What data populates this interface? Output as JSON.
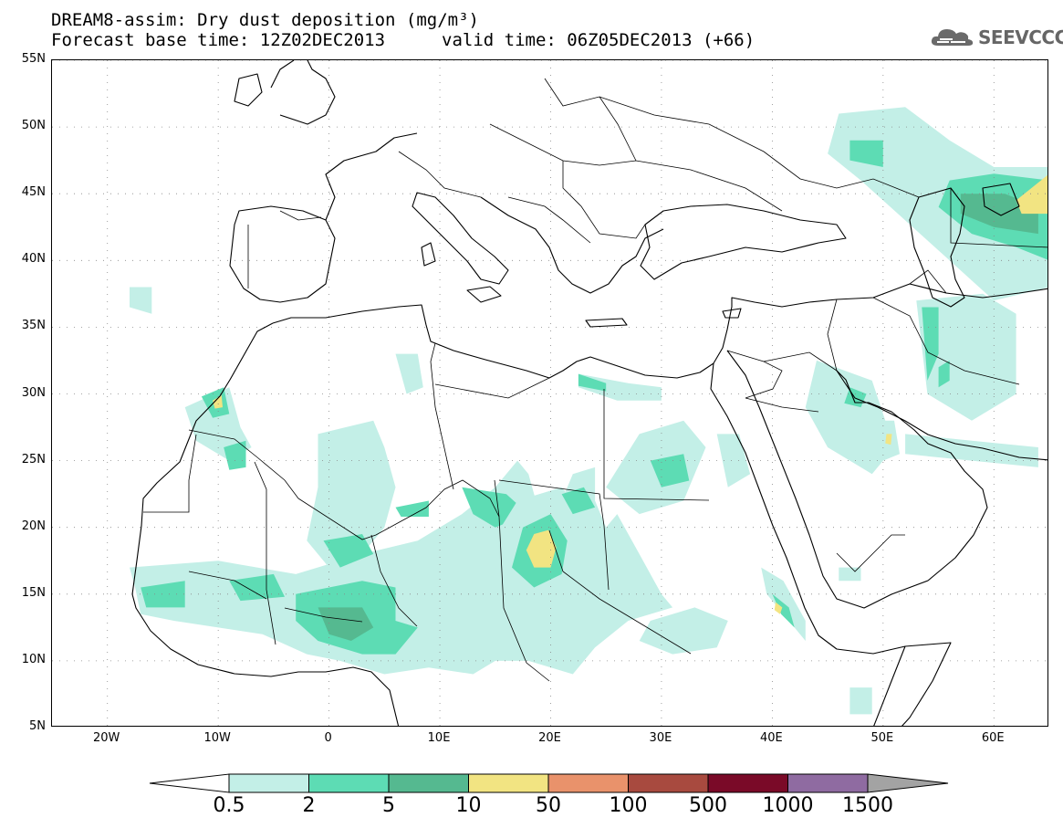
{
  "title": {
    "line1": "DREAM8-assim: Dry dust deposition (mg/m³)",
    "line2_base": "Forecast base time: 12Z02DEC2013",
    "line2_valid": "valid time: 06Z05DEC2013 (+66)"
  },
  "logo": {
    "text": "SEEVCCC",
    "icon": "cloud-logo-icon"
  },
  "map": {
    "lon_min": -25,
    "lon_max": 65,
    "lat_min": 5,
    "lat_max": 55,
    "lat_ticks": [
      {
        "value": 55,
        "label": "55N"
      },
      {
        "value": 50,
        "label": "50N"
      },
      {
        "value": 45,
        "label": "45N"
      },
      {
        "value": 40,
        "label": "40N"
      },
      {
        "value": 35,
        "label": "35N"
      },
      {
        "value": 30,
        "label": "30N"
      },
      {
        "value": 25,
        "label": "25N"
      },
      {
        "value": 20,
        "label": "20N"
      },
      {
        "value": 15,
        "label": "15N"
      },
      {
        "value": 10,
        "label": "10N"
      },
      {
        "value": 5,
        "label": "5N"
      }
    ],
    "lon_ticks": [
      {
        "value": -20,
        "label": "20W"
      },
      {
        "value": -10,
        "label": "10W"
      },
      {
        "value": 0,
        "label": "0"
      },
      {
        "value": 10,
        "label": "10E"
      },
      {
        "value": 20,
        "label": "20E"
      },
      {
        "value": 30,
        "label": "30E"
      },
      {
        "value": 40,
        "label": "40E"
      },
      {
        "value": 50,
        "label": "50E"
      },
      {
        "value": 60,
        "label": "60E"
      }
    ],
    "colors": {
      "c1": "#c3efe7",
      "c2": "#5ddcb4",
      "c3": "#55b990",
      "c4": "#f2e482",
      "ocean": "#ffffff",
      "coast": "#000000"
    },
    "deposition_regions": [
      {
        "level": 1,
        "pts": [
          [
            -13,
            29
          ],
          [
            -9,
            30.5
          ],
          [
            -8,
            27.5
          ],
          [
            -7,
            26
          ],
          [
            -9,
            25
          ],
          [
            -12,
            26.5
          ]
        ]
      },
      {
        "level": 2,
        "pts": [
          [
            -11.5,
            29.8
          ],
          [
            -9.5,
            30.5
          ],
          [
            -9,
            28.5
          ],
          [
            -10.5,
            28.2
          ]
        ]
      },
      {
        "level": 4,
        "pts": [
          [
            -10.5,
            29.5
          ],
          [
            -9.7,
            29.9
          ],
          [
            -9.6,
            29
          ],
          [
            -10.3,
            28.9
          ]
        ]
      },
      {
        "level": 2,
        "pts": [
          [
            -9.5,
            26
          ],
          [
            -7.5,
            26.5
          ],
          [
            -7.5,
            24.5
          ],
          [
            -9,
            24.3
          ]
        ]
      },
      {
        "level": 1,
        "pts": [
          [
            -1,
            27
          ],
          [
            4,
            28
          ],
          [
            5,
            26
          ],
          [
            6,
            23
          ],
          [
            5,
            20
          ],
          [
            3,
            18
          ],
          [
            0,
            17
          ],
          [
            -2,
            19
          ],
          [
            -1,
            23
          ]
        ]
      },
      {
        "level": 1,
        "pts": [
          [
            -18,
            17
          ],
          [
            -10,
            17.5
          ],
          [
            -3,
            16.5
          ],
          [
            3,
            18
          ],
          [
            8,
            19
          ],
          [
            12,
            21
          ],
          [
            15,
            23
          ],
          [
            17,
            25
          ],
          [
            18,
            24
          ],
          [
            19,
            21
          ],
          [
            21,
            22
          ],
          [
            22,
            24
          ],
          [
            24,
            24.5
          ],
          [
            24,
            22
          ],
          [
            25,
            20
          ],
          [
            26,
            21
          ],
          [
            28,
            18
          ],
          [
            30,
            15
          ],
          [
            31,
            14
          ],
          [
            27,
            13
          ],
          [
            24,
            11
          ],
          [
            22,
            9
          ],
          [
            18,
            10
          ],
          [
            15,
            10
          ],
          [
            13,
            9
          ],
          [
            9,
            9.5
          ],
          [
            5,
            9
          ],
          [
            1,
            10
          ],
          [
            -2,
            10.5
          ],
          [
            -6,
            12
          ],
          [
            -10,
            12.5
          ],
          [
            -14,
            13
          ],
          [
            -17,
            13.5
          ],
          [
            -17.5,
            15.5
          ]
        ]
      },
      {
        "level": 2,
        "pts": [
          [
            -17,
            15.5
          ],
          [
            -13,
            16
          ],
          [
            -13,
            14
          ],
          [
            -16.5,
            14
          ]
        ]
      },
      {
        "level": 2,
        "pts": [
          [
            -9,
            16
          ],
          [
            -5,
            16.5
          ],
          [
            -4,
            14.8
          ],
          [
            -8,
            14.5
          ]
        ]
      },
      {
        "level": 2,
        "pts": [
          [
            -3,
            15
          ],
          [
            3,
            16
          ],
          [
            6,
            15.5
          ],
          [
            6,
            13
          ],
          [
            8,
            12.5
          ],
          [
            6,
            10.5
          ],
          [
            3,
            10.5
          ],
          [
            -1,
            11.5
          ],
          [
            -3,
            13
          ]
        ]
      },
      {
        "level": 3,
        "pts": [
          [
            -1,
            14
          ],
          [
            3,
            14
          ],
          [
            4,
            12.5
          ],
          [
            2,
            11.5
          ],
          [
            0,
            12
          ]
        ]
      },
      {
        "level": 2,
        "pts": [
          [
            -0.5,
            19
          ],
          [
            3,
            19.5
          ],
          [
            4,
            18
          ],
          [
            1,
            17
          ]
        ]
      },
      {
        "level": 2,
        "pts": [
          [
            6,
            21.5
          ],
          [
            9,
            22
          ],
          [
            9,
            20.8
          ],
          [
            6.5,
            20.8
          ]
        ]
      },
      {
        "level": 2,
        "pts": [
          [
            12,
            23
          ],
          [
            16,
            22.5
          ],
          [
            18,
            21
          ],
          [
            15,
            20
          ],
          [
            13,
            21
          ]
        ]
      },
      {
        "level": 1,
        "pts": [
          [
            17,
            22
          ],
          [
            21,
            23
          ],
          [
            23,
            21
          ],
          [
            22,
            17
          ],
          [
            19,
            15
          ],
          [
            16,
            15
          ],
          [
            15,
            17
          ],
          [
            15.5,
            20
          ]
        ]
      },
      {
        "level": 2,
        "pts": [
          [
            17.5,
            20
          ],
          [
            20,
            21
          ],
          [
            21.5,
            19
          ],
          [
            21,
            16.5
          ],
          [
            18.5,
            15.5
          ],
          [
            16.5,
            17
          ]
        ]
      },
      {
        "level": 4,
        "pts": [
          [
            18.5,
            19.5
          ],
          [
            19.8,
            19.8
          ],
          [
            20.5,
            18.5
          ],
          [
            20,
            17
          ],
          [
            18.5,
            17
          ],
          [
            17.8,
            18.3
          ]
        ]
      },
      {
        "level": 2,
        "pts": [
          [
            21,
            22.5
          ],
          [
            23,
            23
          ],
          [
            24,
            21.5
          ],
          [
            22,
            21
          ]
        ]
      },
      {
        "level": 1,
        "pts": [
          [
            28,
            27
          ],
          [
            32,
            28
          ],
          [
            34,
            26
          ],
          [
            32,
            22
          ],
          [
            28,
            21
          ],
          [
            25,
            23
          ]
        ]
      },
      {
        "level": 2,
        "pts": [
          [
            29,
            25
          ],
          [
            32,
            25.5
          ],
          [
            32.5,
            23.5
          ],
          [
            30,
            23
          ]
        ]
      },
      {
        "level": 1,
        "pts": [
          [
            29,
            13
          ],
          [
            33,
            14
          ],
          [
            36,
            13
          ],
          [
            35,
            11
          ],
          [
            31,
            10.5
          ],
          [
            28,
            11.5
          ]
        ]
      },
      {
        "level": 1,
        "pts": [
          [
            22.5,
            31.5
          ],
          [
            27,
            30.8
          ],
          [
            30,
            30.5
          ],
          [
            30,
            29.5
          ],
          [
            26,
            29.5
          ],
          [
            22.5,
            30.5
          ]
        ]
      },
      {
        "level": 2,
        "pts": [
          [
            22.5,
            31.5
          ],
          [
            25,
            30.8
          ],
          [
            25,
            30.2
          ],
          [
            22.5,
            30.6
          ]
        ]
      },
      {
        "level": 1,
        "pts": [
          [
            6,
            33
          ],
          [
            8,
            33
          ],
          [
            8.5,
            30.5
          ],
          [
            7,
            30
          ]
        ]
      },
      {
        "level": 1,
        "pts": [
          [
            39,
            17
          ],
          [
            41,
            16
          ],
          [
            43,
            13
          ],
          [
            43,
            11.5
          ],
          [
            41.5,
            13
          ],
          [
            39.5,
            15
          ]
        ]
      },
      {
        "level": 2,
        "pts": [
          [
            40,
            15
          ],
          [
            41.5,
            14
          ],
          [
            42,
            12.5
          ],
          [
            40.8,
            13.5
          ]
        ]
      },
      {
        "level": 4,
        "pts": [
          [
            40.3,
            14.4
          ],
          [
            40.9,
            14
          ],
          [
            40.7,
            13.5
          ],
          [
            40.2,
            13.8
          ]
        ]
      },
      {
        "level": 1,
        "pts": [
          [
            44,
            32.5
          ],
          [
            49,
            31
          ],
          [
            51,
            26
          ],
          [
            49,
            24
          ],
          [
            45,
            26
          ],
          [
            43,
            29
          ]
        ]
      },
      {
        "level": 2,
        "pts": [
          [
            47,
            30.5
          ],
          [
            48.5,
            30
          ],
          [
            48,
            29
          ],
          [
            46.5,
            29.3
          ]
        ]
      },
      {
        "level": 1,
        "pts": [
          [
            49,
            28
          ],
          [
            51,
            28
          ],
          [
            51.5,
            25.5
          ],
          [
            50,
            25
          ]
        ]
      },
      {
        "level": 4,
        "pts": [
          [
            50.3,
            27
          ],
          [
            50.8,
            27
          ],
          [
            50.7,
            26.2
          ],
          [
            50.2,
            26.3
          ]
        ]
      },
      {
        "level": 1,
        "pts": [
          [
            52,
            27
          ],
          [
            58,
            26.5
          ],
          [
            64,
            26
          ],
          [
            64,
            24.5
          ],
          [
            58,
            25
          ],
          [
            52,
            25.5
          ]
        ]
      },
      {
        "level": 1,
        "pts": [
          [
            53,
            37
          ],
          [
            59,
            37.5
          ],
          [
            62,
            36
          ],
          [
            62,
            30
          ],
          [
            58,
            28
          ],
          [
            54,
            30
          ]
        ]
      },
      {
        "level": 2,
        "pts": [
          [
            53.5,
            36.5
          ],
          [
            55,
            36.5
          ],
          [
            55,
            33
          ],
          [
            54,
            31
          ]
        ]
      },
      {
        "level": 2,
        "pts": [
          [
            55,
            32
          ],
          [
            56,
            32.5
          ],
          [
            56,
            31
          ],
          [
            55,
            30.5
          ]
        ]
      },
      {
        "level": 1,
        "pts": [
          [
            46,
            51
          ],
          [
            52,
            51.5
          ],
          [
            56,
            49
          ],
          [
            60,
            47
          ],
          [
            65,
            47
          ],
          [
            65,
            38
          ],
          [
            60,
            37
          ],
          [
            56,
            40
          ],
          [
            52,
            43
          ],
          [
            48,
            46
          ],
          [
            45,
            48
          ]
        ]
      },
      {
        "level": 2,
        "pts": [
          [
            47,
            49
          ],
          [
            50,
            49
          ],
          [
            50,
            47
          ],
          [
            47,
            47.5
          ]
        ]
      },
      {
        "level": 2,
        "pts": [
          [
            56,
            46
          ],
          [
            60,
            46.5
          ],
          [
            65,
            46
          ],
          [
            65,
            40
          ],
          [
            62,
            41
          ],
          [
            58,
            42
          ],
          [
            55,
            44
          ]
        ]
      },
      {
        "level": 3,
        "pts": [
          [
            57,
            45
          ],
          [
            61,
            45
          ],
          [
            64,
            44
          ],
          [
            64,
            42
          ],
          [
            60,
            42.5
          ],
          [
            57,
            43.5
          ]
        ]
      },
      {
        "level": 4,
        "pts": [
          [
            62,
            44.5
          ],
          [
            65,
            46.5
          ],
          [
            65,
            43.5
          ],
          [
            62.5,
            43.5
          ]
        ]
      },
      {
        "level": 1,
        "pts": [
          [
            -18,
            38
          ],
          [
            -16,
            38
          ],
          [
            -16,
            36
          ],
          [
            -18,
            36.5
          ]
        ]
      },
      {
        "level": 1,
        "pts": [
          [
            35,
            27
          ],
          [
            37,
            27
          ],
          [
            38,
            24
          ],
          [
            36,
            23
          ]
        ]
      },
      {
        "level": 1,
        "pts": [
          [
            46,
            17
          ],
          [
            48,
            17
          ],
          [
            48,
            16
          ],
          [
            46,
            16
          ]
        ]
      },
      {
        "level": 1,
        "pts": [
          [
            47,
            8
          ],
          [
            49,
            8
          ],
          [
            49,
            6
          ],
          [
            47,
            6
          ]
        ]
      }
    ]
  },
  "colorbar": {
    "colors": [
      "#c3efe7",
      "#5ddcb4",
      "#55b990",
      "#f2e482",
      "#e9926b",
      "#a84a3f",
      "#7a0a28",
      "#8f6ba1"
    ],
    "over_color": "#a3a3a3",
    "under_color": "#ffffff",
    "labels": [
      "0.5",
      "2",
      "5",
      "10",
      "50",
      "100",
      "500",
      "1000",
      "1500"
    ]
  }
}
